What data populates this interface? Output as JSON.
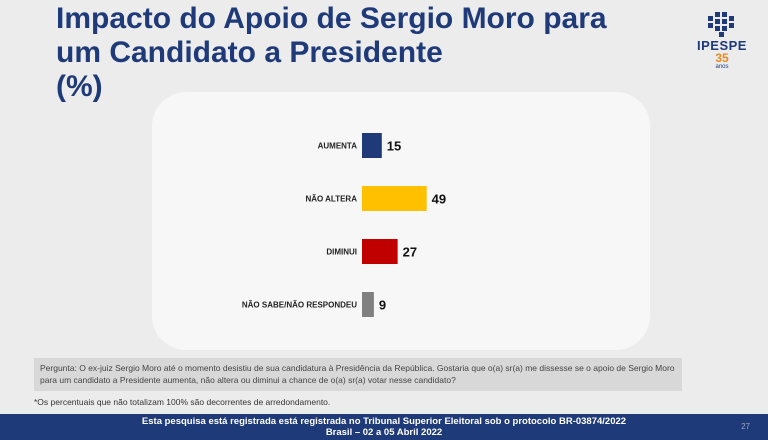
{
  "title_lines": [
    "Impacto do Apoio de Sergio Moro para",
    "um Candidato a Presidente",
    "(%)"
  ],
  "logo": {
    "brand": "IPESPE",
    "years": "35",
    "anos": "anos"
  },
  "colors": {
    "title": "#1f3a78",
    "aumenta": "#1f3a78",
    "nao_altera": "#ffc000",
    "diminui": "#c00000",
    "nao_sabe": "#808080",
    "footer_bg": "#1f3a78"
  },
  "chart_data": {
    "type": "bar",
    "orientation": "horizontal",
    "categories": [
      "AUMENTA",
      "NÃO ALTERA",
      "DIMINUI",
      "NÃO SABE/NÃO RESPONDEU"
    ],
    "values": [
      15,
      49,
      27,
      9
    ],
    "colors": [
      "#1f3a78",
      "#ffc000",
      "#c00000",
      "#808080"
    ],
    "title": "",
    "xlabel": "",
    "ylabel": "",
    "xlim": [
      0,
      100
    ],
    "grid": false,
    "legend": "none",
    "data_labels": true
  },
  "question": "Pergunta: O ex-juiz Sergio Moro até o momento desistiu de sua candidatura à Presidência da República. Gostaria que o(a) sr(a) me dissesse se o apoio de Sergio Moro para um candidato a Presidente aumenta, não altera ou diminui a chance de o(a) sr(a) votar nesse candidato?",
  "footnote": "*Os percentuais que não totalizam 100% são decorrentes de arredondamento.",
  "footer": {
    "line1": "Esta pesquisa está registrada está registrada no Tribunal Superior Eleitoral sob o protocolo BR-03874/2022",
    "line2": "Brasil – 02 a 05 Abril 2022"
  },
  "page_number": "27"
}
